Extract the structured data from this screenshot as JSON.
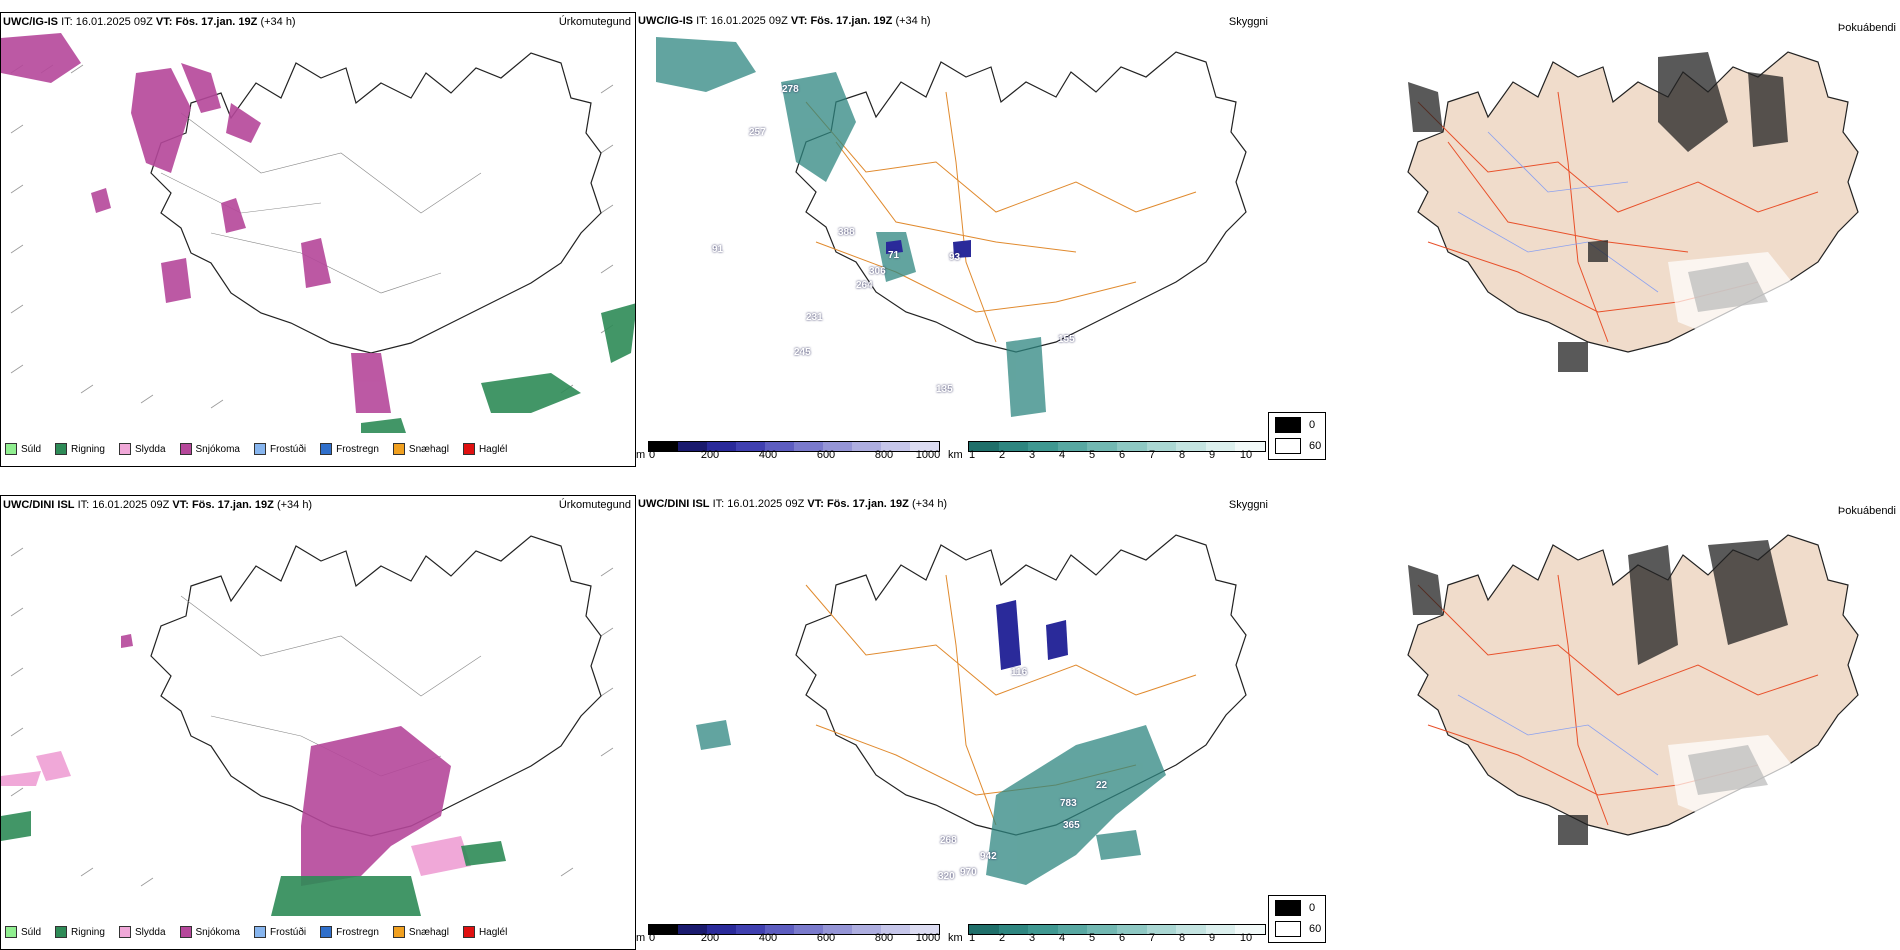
{
  "rows": [
    {
      "id": "top",
      "precip": {
        "model": "UWC/IG-IS",
        "it_label": "IT:",
        "it_value": "16.01.2025 09Z",
        "vt_label": "VT:",
        "vt_value": "Fös. 17.jan. 19Z",
        "lead": "(+34 h)",
        "title": "Úrkomutegund"
      },
      "cloud": {
        "model": "UWC/IG-IS",
        "it_label": "IT:",
        "it_value": "16.01.2025 09Z",
        "vt_label": "VT:",
        "vt_value": "Fös. 17.jan. 19Z",
        "lead": "(+34 h)",
        "title": "Skyggni",
        "labels": [
          "278",
          "257",
          "91",
          "388",
          "306",
          "264",
          "71",
          "231",
          "245",
          "93",
          "155",
          "135"
        ]
      },
      "fog": {
        "title": "Þokuábendi"
      }
    },
    {
      "id": "bottom",
      "precip": {
        "model": "UWC/DINI ISL",
        "it_label": "IT:",
        "it_value": "16.01.2025 09Z",
        "vt_label": "VT:",
        "vt_value": "Fös. 17.jan. 19Z",
        "lead": "(+34 h)",
        "title": "Úrkomutegund"
      },
      "cloud": {
        "model": "UWC/DINI ISL",
        "it_label": "IT:",
        "it_value": "16.01.2025 09Z",
        "vt_label": "VT:",
        "vt_value": "Fös. 17.jan. 19Z",
        "lead": "(+34 h)",
        "title": "Skyggni",
        "labels": [
          "116",
          "22",
          "783",
          "365",
          "942",
          "268",
          "320",
          "970"
        ]
      },
      "fog": {
        "title": "Þokuábendi"
      }
    }
  ],
  "precip_legend": [
    {
      "label": "Súld",
      "color": "#90ee90"
    },
    {
      "label": "Rigning",
      "color": "#2e8b57"
    },
    {
      "label": "Slydda",
      "color": "#f0a8d8"
    },
    {
      "label": "Snjókoma",
      "color": "#b5479a"
    },
    {
      "label": "Frostúði",
      "color": "#87b5ee"
    },
    {
      "label": "Frostregn",
      "color": "#2f6fcb"
    },
    {
      "label": "Snæhagl",
      "color": "#f0a020"
    },
    {
      "label": "Haglél",
      "color": "#e01010"
    }
  ],
  "cloudbase_bar": {
    "unit": "m",
    "ticks": [
      "0",
      "200",
      "400",
      "600",
      "800",
      "1000"
    ],
    "colors": [
      "#000000",
      "#1a1a6e",
      "#2a2a9a",
      "#4040b0",
      "#5d5dc0",
      "#7a7acc",
      "#9595d6",
      "#aeaee0",
      "#c6c6ea",
      "#dcdcf2"
    ]
  },
  "visibility_bar": {
    "unit": "km",
    "ticks": [
      "1",
      "2",
      "3",
      "4",
      "5",
      "6",
      "7",
      "8",
      "9",
      "10"
    ],
    "colors": [
      "#1f6f6a",
      "#2e8680",
      "#3f9891",
      "#58a8a2",
      "#72b8b2",
      "#8ec8c3",
      "#aad7d3",
      "#c4e4e1",
      "#dcf0ee",
      "#f2faf9"
    ]
  },
  "fog_key": {
    "items": [
      {
        "label": "0",
        "color": "#000000"
      },
      {
        "label": "60",
        "color": "#ffffff"
      }
    ]
  }
}
